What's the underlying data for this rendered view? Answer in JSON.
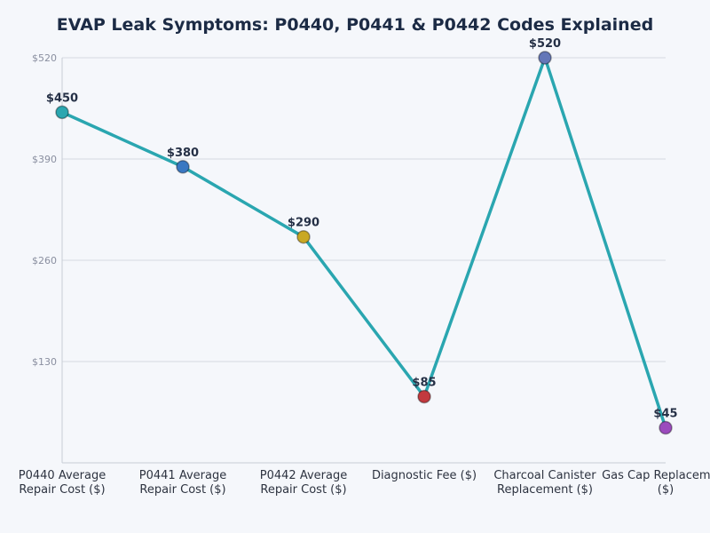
{
  "chart_data": {
    "type": "line",
    "title": "EVAP Leak Symptoms: P0440, P0441 & P0442 Codes Explained",
    "xlabel": "",
    "ylabel": "",
    "categories": [
      [
        "P0440 Average",
        "Repair Cost ($)"
      ],
      [
        "P0441 Average",
        "Repair Cost ($)"
      ],
      [
        "P0442 Average",
        "Repair Cost ($)"
      ],
      [
        "Diagnostic Fee ($)"
      ],
      [
        "Charcoal Canister",
        "Replacement ($)"
      ],
      [
        "Gas Cap Replacement",
        "($)"
      ]
    ],
    "values": [
      450,
      380,
      290,
      85,
      520,
      45
    ],
    "data_labels": [
      "$450",
      "$380",
      "$290",
      "$85",
      "$520",
      "$45"
    ],
    "point_colors": [
      "#2aa6b0",
      "#3a78c2",
      "#c9a825",
      "#c23a3f",
      "#6477b8",
      "#9b4bbd"
    ],
    "line_color": "#2aa6b0",
    "ylim": [
      0,
      520
    ],
    "yticks": [
      130,
      260,
      390,
      520
    ],
    "ytick_labels": [
      "$130",
      "$260",
      "$390",
      "$520"
    ],
    "grid": true,
    "legend": "none"
  }
}
